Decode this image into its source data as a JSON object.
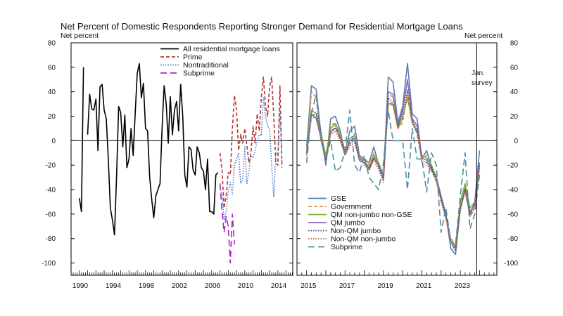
{
  "title": "Net Percent of Domestic Respondents Reporting Stronger Demand for Residential Mortgage Loans",
  "unit_left": "Net percent",
  "unit_right": "Net percent",
  "annotation": [
    "Jan.",
    "survey"
  ],
  "chart_data": [
    {
      "type": "line",
      "panel": "left",
      "ylabel": "Net percent",
      "ylim": [
        -110,
        80
      ],
      "xlim": [
        1989.0,
        2015.8
      ],
      "yticks": [
        80,
        60,
        40,
        20,
        0,
        -20,
        -40,
        -60,
        -80,
        -100
      ],
      "xtick_labels": [
        "1990",
        "1994",
        "1998",
        "2002",
        "2006",
        "2010",
        "2014"
      ],
      "legend_position": "top-right",
      "series": [
        {
          "name": "All residential mortgage loans",
          "color": "#000000",
          "style": "solid",
          "x": [
            1990.0,
            1990.25,
            1990.5,
            1990.75,
            1991.0,
            1991.25,
            1991.5,
            1991.75,
            1992.0,
            1992.25,
            1992.5,
            1992.75,
            1993.0,
            1993.25,
            1993.5,
            1993.75,
            1994.0,
            1994.25,
            1994.5,
            1994.75,
            1995.0,
            1995.25,
            1995.5,
            1995.75,
            1996.0,
            1996.25,
            1996.5,
            1996.75,
            1997.0,
            1997.25,
            1997.5,
            1997.75,
            1998.0,
            1998.25,
            1998.5,
            1998.75,
            1999.0,
            1999.25,
            1999.5,
            1999.75,
            2000.0,
            2000.25,
            2000.5,
            2000.75,
            2001.0,
            2001.25,
            2001.5,
            2001.75,
            2002.0,
            2002.25,
            2002.5,
            2002.75,
            2003.0,
            2003.25,
            2003.5,
            2003.75,
            2004.0,
            2004.25,
            2004.5,
            2004.75,
            2005.0,
            2005.25,
            2005.5,
            2005.75,
            2006.0,
            2006.25,
            2006.5,
            2006.75
          ],
          "values": [
            -47,
            -58,
            60,
            null,
            5,
            38,
            26,
            25,
            34,
            -8,
            44,
            46,
            25,
            18,
            -15,
            -55,
            -65,
            -77,
            -30,
            28,
            23,
            -5,
            21,
            -22,
            -15,
            10,
            -12,
            22,
            55,
            63,
            35,
            47,
            10,
            8,
            -30,
            -48,
            -63,
            -45,
            -40,
            -35,
            10,
            45,
            30,
            -2,
            36,
            5,
            25,
            32,
            8,
            46,
            20,
            -28,
            -38,
            -5,
            -7,
            -24,
            -28,
            -5,
            -10,
            -22,
            -25,
            -40,
            -15,
            -58,
            -58,
            -60,
            -28,
            -26
          ]
        },
        {
          "name": "Prime",
          "color": "#b33636",
          "style": "dashed",
          "x": [
            2007.0,
            2007.25,
            2007.5,
            2007.75,
            2008.0,
            2008.25,
            2008.5,
            2008.75,
            2009.0,
            2009.25,
            2009.5,
            2009.75,
            2010.0,
            2010.25,
            2010.5,
            2010.75,
            2011.0,
            2011.25,
            2011.5,
            2011.75,
            2012.0,
            2012.25,
            2012.5,
            2012.75,
            2013.0,
            2013.25,
            2013.5,
            2013.75,
            2014.0,
            2014.25,
            2014.5
          ],
          "values": [
            -10,
            -24,
            -55,
            -45,
            -26,
            -28,
            10,
            37,
            25,
            -8,
            5,
            -2,
            10,
            -4,
            -18,
            -10,
            12,
            -2,
            22,
            8,
            35,
            52,
            28,
            20,
            44,
            52,
            20,
            -18,
            -20,
            45,
            -22
          ]
        },
        {
          "name": "Nontraditional",
          "color": "#4f78c8",
          "style": "dotted",
          "x": [
            2007.0,
            2007.25,
            2007.5,
            2007.75,
            2008.0,
            2008.25,
            2008.5,
            2008.75,
            2009.0,
            2009.25,
            2009.5,
            2009.75,
            2010.0,
            2010.25,
            2010.5,
            2010.75,
            2011.0,
            2011.25,
            2011.5,
            2011.75,
            2012.0,
            2012.25,
            2012.5,
            2012.75,
            2013.0,
            2013.25,
            2013.5,
            2013.75,
            2014.0,
            2014.25,
            2014.5
          ],
          "values": [
            -38,
            -45,
            -65,
            -58,
            -42,
            -34,
            -44,
            -20,
            -15,
            -10,
            -35,
            -32,
            -5,
            -35,
            -25,
            -12,
            -14,
            -8,
            0,
            5,
            4,
            35,
            20,
            12,
            10,
            -20,
            -46,
            -10,
            -12,
            25,
            -20
          ]
        },
        {
          "name": "Subprime",
          "color": "#b024c6",
          "style": "longdash",
          "x": [
            2007.0,
            2007.25,
            2007.5,
            2007.75,
            2008.0,
            2008.25,
            2008.5,
            2008.75
          ],
          "values": [
            -35,
            -58,
            -75,
            -62,
            -70,
            -100,
            -60,
            -85
          ]
        }
      ]
    },
    {
      "type": "line",
      "panel": "right",
      "ylabel": "Net percent",
      "ylim": [
        -110,
        80
      ],
      "xlim": [
        2014.5,
        2024.9
      ],
      "yticks": [
        80,
        60,
        40,
        20,
        0,
        -20,
        -40,
        -60,
        -80,
        -100
      ],
      "xtick_labels": [
        "2015",
        "2017",
        "2019",
        "2021",
        "2023"
      ],
      "legend_position": "bottom-left",
      "annotation": "Jan. survey",
      "series": [
        {
          "name": "GSE",
          "color": "#5a7db0",
          "style": "solid",
          "x": [
            2015.0,
            2015.25,
            2015.5,
            2015.75,
            2016.0,
            2016.25,
            2016.5,
            2016.75,
            2017.0,
            2017.25,
            2017.5,
            2017.75,
            2018.0,
            2018.25,
            2018.5,
            2018.75,
            2019.0,
            2019.25,
            2019.5,
            2019.75,
            2020.0,
            2020.25,
            2020.5,
            2020.75,
            2021.0,
            2021.25,
            2021.5,
            2021.75,
            2022.0,
            2022.25,
            2022.5,
            2022.75,
            2023.0,
            2023.25,
            2023.5,
            2023.75,
            2024.0
          ],
          "values": [
            -5,
            45,
            42,
            5,
            -20,
            18,
            20,
            8,
            -10,
            8,
            12,
            -12,
            -15,
            -18,
            -5,
            -20,
            -30,
            52,
            48,
            15,
            28,
            63,
            22,
            18,
            -15,
            -8,
            -22,
            -30,
            -45,
            -60,
            -88,
            -93,
            -55,
            -38,
            -60,
            -50,
            -8
          ]
        },
        {
          "name": "Government",
          "color": "#d8894a",
          "style": "dashed",
          "x": [
            2015.0,
            2015.25,
            2015.5,
            2015.75,
            2016.0,
            2016.25,
            2016.5,
            2016.75,
            2017.0,
            2017.25,
            2017.5,
            2017.75,
            2018.0,
            2018.25,
            2018.5,
            2018.75,
            2019.0,
            2019.25,
            2019.5,
            2019.75,
            2020.0,
            2020.25,
            2020.5,
            2020.75,
            2021.0,
            2021.25,
            2021.5,
            2021.75,
            2022.0,
            2022.25,
            2022.5,
            2022.75,
            2023.0,
            2023.25,
            2023.5,
            2023.75,
            2024.0
          ],
          "values": [
            -12,
            40,
            35,
            0,
            -15,
            12,
            15,
            0,
            -10,
            -4,
            6,
            -14,
            -14,
            -20,
            -10,
            -22,
            -32,
            40,
            35,
            10,
            15,
            40,
            18,
            5,
            -15,
            -12,
            -25,
            -32,
            -48,
            -62,
            -80,
            -84,
            -52,
            -38,
            -62,
            -52,
            -28
          ]
        },
        {
          "name": "QM non-jumbo non-GSE",
          "color": "#7cb428",
          "style": "solid",
          "x": [
            2015.0,
            2015.25,
            2015.5,
            2015.75,
            2016.0,
            2016.25,
            2016.5,
            2016.75,
            2017.0,
            2017.25,
            2017.5,
            2017.75,
            2018.0,
            2018.25,
            2018.5,
            2018.75,
            2019.0,
            2019.25,
            2019.5,
            2019.75,
            2020.0,
            2020.25,
            2020.5,
            2020.75,
            2021.0,
            2021.25,
            2021.5,
            2021.75,
            2022.0,
            2022.25,
            2022.5,
            2022.75,
            2023.0,
            2023.25,
            2023.5,
            2023.75,
            2024.0
          ],
          "values": [
            -8,
            25,
            22,
            5,
            -12,
            10,
            14,
            6,
            -8,
            2,
            4,
            -15,
            -16,
            -22,
            -12,
            -18,
            -28,
            30,
            30,
            10,
            20,
            35,
            15,
            8,
            -12,
            -14,
            -20,
            -30,
            -48,
            -62,
            -82,
            -86,
            -50,
            -35,
            -55,
            -50,
            -20
          ]
        },
        {
          "name": "QM jumbo",
          "color": "#8a6ab8",
          "style": "solid",
          "x": [
            2015.0,
            2015.25,
            2015.5,
            2015.75,
            2016.0,
            2016.25,
            2016.5,
            2016.75,
            2017.0,
            2017.25,
            2017.5,
            2017.75,
            2018.0,
            2018.25,
            2018.5,
            2018.75,
            2019.0,
            2019.25,
            2019.5,
            2019.75,
            2020.0,
            2020.25,
            2020.5,
            2020.75,
            2021.0,
            2021.25,
            2021.5,
            2021.75,
            2022.0,
            2022.25,
            2022.5,
            2022.75,
            2023.0,
            2023.25,
            2023.5,
            2023.75,
            2024.0
          ],
          "values": [
            -10,
            22,
            18,
            2,
            -18,
            8,
            10,
            4,
            -10,
            0,
            2,
            -16,
            -18,
            -24,
            -14,
            -20,
            -30,
            40,
            38,
            12,
            25,
            50,
            18,
            12,
            -14,
            -16,
            -24,
            -30,
            -46,
            -60,
            -82,
            -88,
            -55,
            -40,
            -58,
            -52,
            -18
          ]
        },
        {
          "name": "Non-QM jumbo",
          "color": "#443b78",
          "style": "dotted",
          "x": [
            2015.0,
            2015.25,
            2015.5,
            2015.75,
            2016.0,
            2016.25,
            2016.5,
            2016.75,
            2017.0,
            2017.25,
            2017.5,
            2017.75,
            2018.0,
            2018.25,
            2018.5,
            2018.75,
            2019.0,
            2019.25,
            2019.5,
            2019.75,
            2020.0,
            2020.25,
            2020.5,
            2020.75,
            2021.0,
            2021.25,
            2021.5,
            2021.75,
            2022.0,
            2022.25,
            2022.5,
            2022.75,
            2023.0,
            2023.25,
            2023.5,
            2023.75,
            2024.0
          ],
          "values": [
            -10,
            20,
            22,
            8,
            -16,
            6,
            12,
            2,
            -12,
            -2,
            0,
            -14,
            -18,
            -22,
            -14,
            -22,
            -32,
            35,
            30,
            12,
            22,
            42,
            16,
            8,
            -16,
            -18,
            -22,
            -32,
            -48,
            -62,
            -84,
            -90,
            -56,
            -40,
            -60,
            -55,
            -20
          ]
        },
        {
          "name": "Non-QM non-jumbo",
          "color": "#b5623e",
          "style": "dotted",
          "x": [
            2015.0,
            2015.25,
            2015.5,
            2015.75,
            2016.0,
            2016.25,
            2016.5,
            2016.75,
            2017.0,
            2017.25,
            2017.5,
            2017.75,
            2018.0,
            2018.25,
            2018.5,
            2018.75,
            2019.0,
            2019.25,
            2019.5,
            2019.75,
            2020.0,
            2020.25,
            2020.5,
            2020.75,
            2021.0,
            2021.25,
            2021.5,
            2021.75,
            2022.0,
            2022.25,
            2022.5,
            2022.75,
            2023.0,
            2023.25,
            2023.5,
            2023.75,
            2024.0
          ],
          "values": [
            -12,
            18,
            20,
            5,
            -14,
            5,
            8,
            0,
            -12,
            -4,
            -2,
            -16,
            -20,
            -24,
            -16,
            -24,
            -34,
            32,
            28,
            10,
            18,
            38,
            14,
            6,
            -18,
            -20,
            -24,
            -34,
            -50,
            -64,
            -84,
            -88,
            -58,
            -42,
            -62,
            -56,
            -22
          ]
        },
        {
          "name": "Subprime",
          "color": "#4a8fa2",
          "style": "longdash",
          "x": [
            2015.0,
            2015.25,
            2015.5,
            2015.75,
            2016.0,
            2016.25,
            2016.5,
            2016.75,
            2017.0,
            2017.25,
            2017.5,
            2017.75,
            2018.0,
            2018.25,
            2018.5,
            2018.75,
            2019.0,
            2019.25,
            2019.5,
            2019.75,
            2020.0,
            2020.25,
            2020.5,
            2020.75,
            2021.0,
            2021.25,
            2021.5,
            2021.75,
            2022.0,
            2022.25,
            2022.5,
            2022.75,
            2023.0,
            2023.25,
            2023.5,
            2023.75,
            2024.0
          ],
          "values": [
            -18,
            22,
            38,
            0,
            -15,
            0,
            -25,
            -22,
            -8,
            25,
            -20,
            -26,
            -12,
            -30,
            -35,
            -40,
            -18,
            25,
            0,
            0,
            0,
            -40,
            10,
            -15,
            -15,
            -42,
            -10,
            -20,
            -75,
            -55,
            -82,
            -85,
            -45,
            -10,
            -72,
            -60,
            -28
          ]
        }
      ]
    }
  ]
}
